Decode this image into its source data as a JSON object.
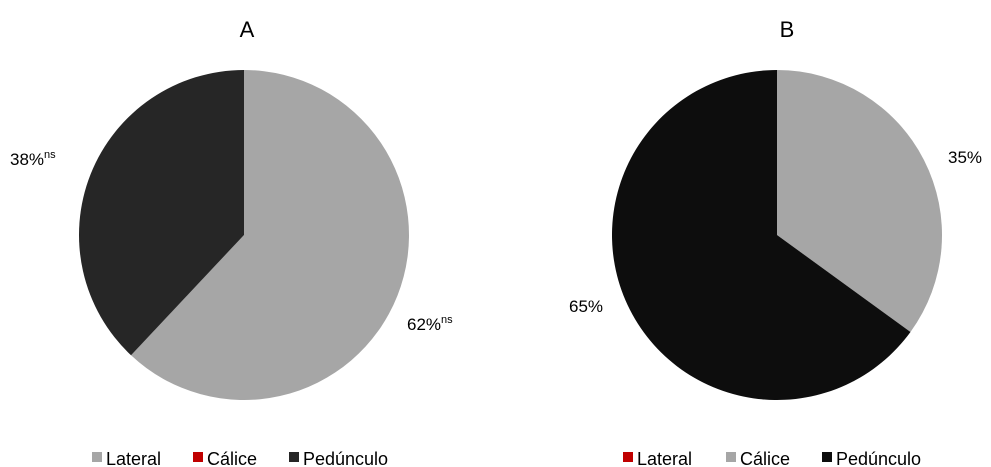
{
  "chart_data": [
    {
      "type": "pie",
      "title": "A",
      "slices": [
        {
          "name": "Lateral",
          "value": 62,
          "label": "62%",
          "sup": "ns",
          "color": "#a6a6a6"
        },
        {
          "name": "Cálice",
          "value": 0,
          "label": "",
          "sup": "",
          "color": "#c00000"
        },
        {
          "name": "Pedúnculo",
          "value": 38,
          "label": "38%",
          "sup": "ns",
          "color": "#262626"
        }
      ],
      "legend": [
        {
          "name": "Lateral",
          "color": "#a6a6a6"
        },
        {
          "name": "Cálice",
          "color": "#c00000"
        },
        {
          "name": "Pedúnculo",
          "color": "#262626"
        }
      ],
      "legend_position": "bottom"
    },
    {
      "type": "pie",
      "title": "B",
      "slices": [
        {
          "name": "Lateral",
          "value": 0,
          "label": "",
          "sup": "",
          "color": "#c00000"
        },
        {
          "name": "Cálice",
          "value": 35,
          "label": "35%",
          "sup": "",
          "color": "#a6a6a6"
        },
        {
          "name": "Pedúnculo",
          "value": 65,
          "label": "65%",
          "sup": "",
          "color": "#0d0d0d"
        }
      ],
      "legend": [
        {
          "name": "Lateral",
          "color": "#c00000"
        },
        {
          "name": "Cálice",
          "color": "#a6a6a6"
        },
        {
          "name": "Pedúnculo",
          "color": "#0d0d0d"
        }
      ],
      "legend_position": "bottom"
    }
  ]
}
